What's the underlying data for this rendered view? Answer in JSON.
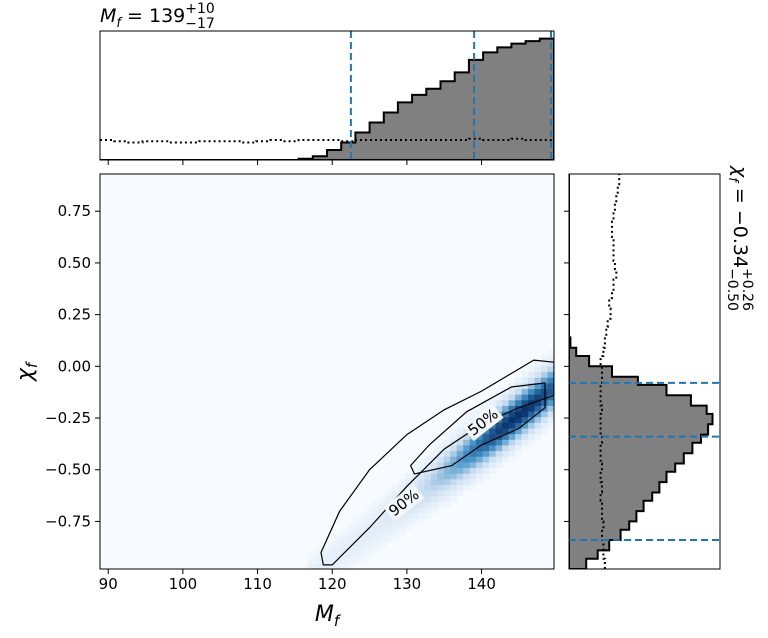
{
  "chart_data": {
    "type": "corner",
    "marginal_top": {
      "title_var": "M",
      "title_sub": "f",
      "title_value": "139",
      "title_plus": "+10",
      "title_minus": "−17",
      "quantiles": [
        122.5,
        139.0,
        149.3
      ],
      "bins": [
        88.9,
        90.8,
        92.7,
        94.6,
        96.5,
        98.4,
        100.3,
        102.2,
        104.1,
        106.0,
        107.9,
        109.8,
        111.7,
        113.6,
        115.5,
        117.4,
        119.3,
        121.2,
        123.1,
        125.0,
        126.9,
        128.8,
        130.7,
        132.6,
        134.5,
        136.4,
        138.3,
        140.2,
        142.1,
        144.0,
        145.9,
        147.8,
        149.7
      ],
      "posterior": [
        0.0,
        0.0,
        0.0,
        0.0,
        0.0,
        0.0,
        0.0,
        0.0,
        0.0,
        0.0,
        0.0,
        0.0,
        0.0,
        0.0,
        0.01,
        0.03,
        0.08,
        0.14,
        0.22,
        0.3,
        0.38,
        0.46,
        0.52,
        0.57,
        0.63,
        0.7,
        0.8,
        0.86,
        0.9,
        0.93,
        0.95,
        0.97
      ],
      "prior": [
        0.16,
        0.15,
        0.14,
        0.15,
        0.15,
        0.14,
        0.14,
        0.15,
        0.15,
        0.15,
        0.14,
        0.15,
        0.16,
        0.15,
        0.16,
        0.16,
        0.16,
        0.15,
        0.16,
        0.16,
        0.16,
        0.16,
        0.16,
        0.16,
        0.16,
        0.16,
        0.17,
        0.16,
        0.16,
        0.17,
        0.16,
        0.16
      ]
    },
    "joint": {
      "xlabel_var": "M",
      "xlabel_sub": "f",
      "ylabel_var": "χ",
      "ylabel_sub": "f",
      "xlim": [
        88.9,
        149.7
      ],
      "ylim": [
        -0.98,
        0.93
      ],
      "xticks": [
        90,
        100,
        110,
        120,
        130,
        140
      ],
      "yticks": [
        0.75,
        0.5,
        0.25,
        0.0,
        -0.25,
        -0.5,
        -0.75
      ],
      "yticklabels": [
        "0.75",
        "0.50",
        "0.25",
        "0.00",
        "−0.25",
        "−0.50",
        "−0.75"
      ],
      "density_ridge": {
        "m0": 118.5,
        "chi0": -0.98,
        "m1": 149.7,
        "chi1": -0.1,
        "peak_m": 145.0,
        "peak_chi": -0.15
      },
      "contour_labels": [
        "50%",
        "90%"
      ],
      "contour_levels": [
        0.5,
        0.9
      ],
      "contour_90": [
        [
          118.8,
          -0.96
        ],
        [
          120.0,
          -0.96
        ],
        [
          125.0,
          -0.78
        ],
        [
          130.0,
          -0.58
        ],
        [
          135.0,
          -0.4
        ],
        [
          140.0,
          -0.28
        ],
        [
          145.0,
          -0.2
        ],
        [
          149.7,
          -0.14
        ],
        [
          149.7,
          0.02
        ],
        [
          147.0,
          0.03
        ],
        [
          140.0,
          -0.12
        ],
        [
          135.0,
          -0.21
        ],
        [
          130.0,
          -0.33
        ],
        [
          125.0,
          -0.5
        ],
        [
          121.0,
          -0.7
        ],
        [
          118.5,
          -0.9
        ]
      ],
      "contour_50": [
        [
          131.0,
          -0.52
        ],
        [
          136.0,
          -0.48
        ],
        [
          140.0,
          -0.38
        ],
        [
          145.0,
          -0.3
        ],
        [
          148.5,
          -0.2
        ],
        [
          148.5,
          -0.08
        ],
        [
          144.0,
          -0.1
        ],
        [
          138.0,
          -0.22
        ],
        [
          133.0,
          -0.38
        ],
        [
          130.5,
          -0.48
        ]
      ]
    },
    "marginal_right": {
      "title_var": "χ",
      "title_sub": "f",
      "title_value": "−0.34",
      "title_plus": "+0.26",
      "title_minus": "−0.50",
      "quantiles": [
        -0.84,
        -0.34,
        -0.08
      ],
      "bins": [
        -0.98,
        -0.93,
        -0.89,
        -0.84,
        -0.79,
        -0.75,
        -0.7,
        -0.65,
        -0.61,
        -0.56,
        -0.51,
        -0.47,
        -0.42,
        -0.37,
        -0.33,
        -0.28,
        -0.23,
        -0.19,
        -0.14,
        -0.09,
        -0.05,
        0.0,
        0.05,
        0.09,
        0.14,
        0.19,
        0.23,
        0.28,
        0.33,
        0.37,
        0.42,
        0.47,
        0.51,
        0.56,
        0.61,
        0.65,
        0.7,
        0.75,
        0.79,
        0.84,
        0.88,
        0.93
      ],
      "posterior": [
        0.12,
        0.2,
        0.28,
        0.36,
        0.42,
        0.47,
        0.52,
        0.58,
        0.63,
        0.68,
        0.74,
        0.8,
        0.86,
        0.92,
        0.97,
        1.0,
        0.96,
        0.85,
        0.68,
        0.48,
        0.3,
        0.14,
        0.05,
        0.01,
        0.0,
        0.0,
        0.0,
        0.0,
        0.0,
        0.0,
        0.0,
        0.0,
        0.0,
        0.0,
        0.0,
        0.0,
        0.0,
        0.0,
        0.0,
        0.0,
        0.0
      ],
      "prior": [
        0.25,
        0.24,
        0.24,
        0.23,
        0.24,
        0.23,
        0.23,
        0.22,
        0.23,
        0.22,
        0.23,
        0.22,
        0.22,
        0.23,
        0.22,
        0.22,
        0.23,
        0.22,
        0.22,
        0.23,
        0.23,
        0.22,
        0.24,
        0.25,
        0.26,
        0.27,
        0.29,
        0.28,
        0.3,
        0.31,
        0.33,
        0.32,
        0.31,
        0.31,
        0.3,
        0.3,
        0.31,
        0.32,
        0.33,
        0.34,
        0.35
      ]
    },
    "colors": {
      "posterior_fill": "#808080",
      "posterior_edge": "#000000",
      "quantile_line": "#1f77b4",
      "prior_line": "#000000",
      "density_dark": "#08306b",
      "density_light": "#f7fbff"
    }
  }
}
